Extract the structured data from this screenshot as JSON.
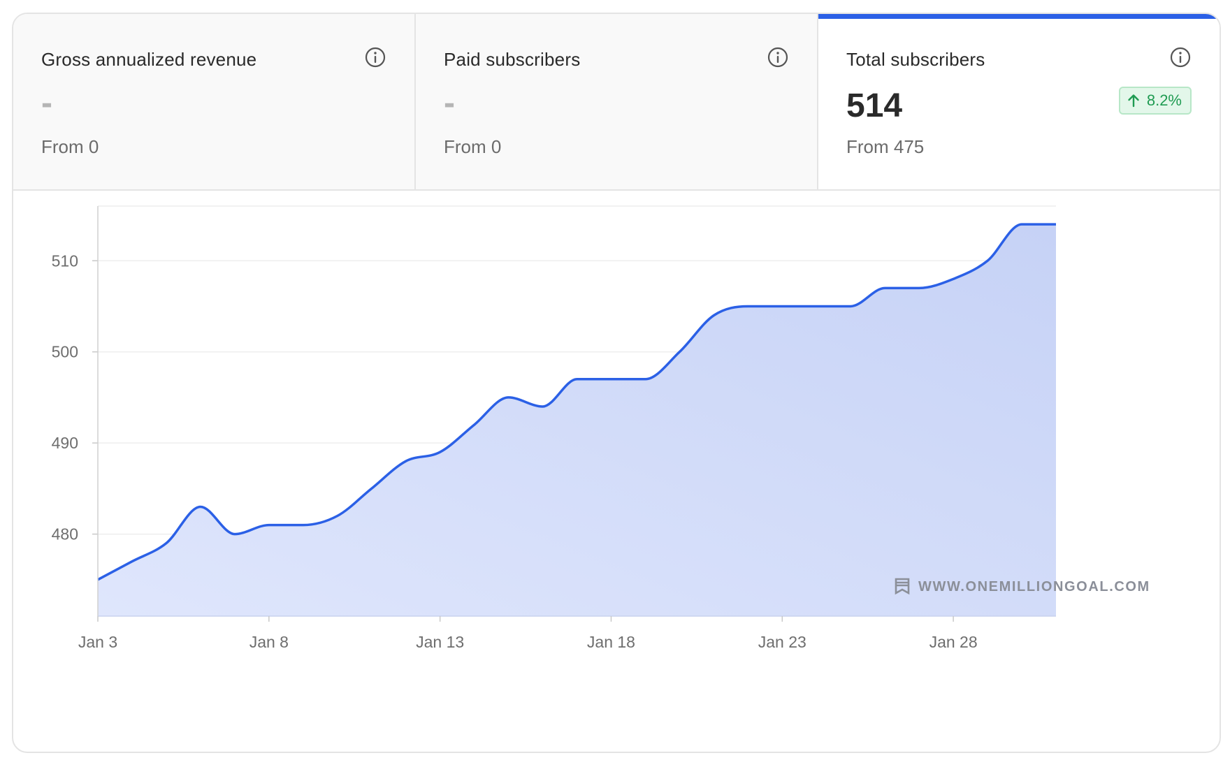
{
  "tabs": [
    {
      "label": "Gross annualized revenue",
      "value": "-",
      "from": "From 0",
      "active": false
    },
    {
      "label": "Paid subscribers",
      "value": "-",
      "from": "From 0",
      "active": false
    },
    {
      "label": "Total subscribers",
      "value": "514",
      "from": "From 475",
      "active": true,
      "badge": "8.2%"
    }
  ],
  "watermark": "WWW.ONEMILLIONGOAL.COM",
  "colors": {
    "accent": "#2b60e6",
    "fill": "#cdd8f8",
    "badge_text": "#1f9b52",
    "badge_bg": "#e3f7ea"
  },
  "chart_data": {
    "type": "area",
    "title": "",
    "xlabel": "",
    "ylabel": "",
    "x_ticks": [
      "Jan 3",
      "Jan 8",
      "Jan 13",
      "Jan 18",
      "Jan 23",
      "Jan 28"
    ],
    "y_ticks": [
      480,
      490,
      500,
      510
    ],
    "ylim": [
      471,
      516
    ],
    "grid": true,
    "series": [
      {
        "x": [
          "Jan 3",
          "Jan 4",
          "Jan 5",
          "Jan 6",
          "Jan 7",
          "Jan 8",
          "Jan 9",
          "Jan 10",
          "Jan 11",
          "Jan 12",
          "Jan 13",
          "Jan 14",
          "Jan 15",
          "Jan 16",
          "Jan 17",
          "Jan 18",
          "Jan 19",
          "Jan 20",
          "Jan 21",
          "Jan 22",
          "Jan 23",
          "Jan 24",
          "Jan 25",
          "Jan 26",
          "Jan 27",
          "Jan 28",
          "Jan 29",
          "Jan 30",
          "Jan 31"
        ],
        "values": [
          475,
          477,
          479,
          483,
          480,
          481,
          481,
          482,
          485,
          488,
          489,
          492,
          495,
          494,
          497,
          497,
          497,
          500,
          504,
          505,
          505,
          505,
          505,
          507,
          507,
          508,
          510,
          514,
          514
        ]
      }
    ]
  }
}
